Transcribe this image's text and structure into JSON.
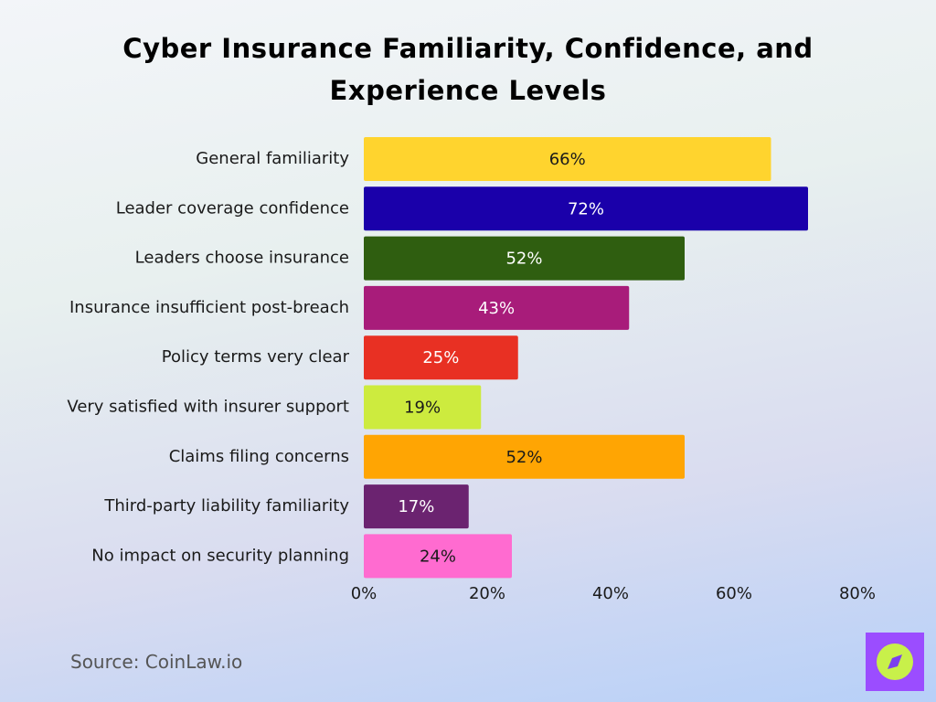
{
  "chart_data": {
    "type": "bar",
    "orientation": "horizontal",
    "title": "Cyber Insurance Familiarity, Confidence, and Experience Levels",
    "categories": [
      "General familiarity",
      "Leader coverage confidence",
      "Leaders choose insurance",
      "Insurance insufficient post-breach",
      "Policy terms very clear",
      "Very satisfied with insurer support",
      "Claims filing concerns",
      "Third-party liability familiarity",
      "No impact on security planning"
    ],
    "values": [
      66,
      72,
      52,
      43,
      25,
      19,
      52,
      17,
      24
    ],
    "value_labels": [
      "66%",
      "72%",
      "52%",
      "43%",
      "25%",
      "19%",
      "52%",
      "17%",
      "24%"
    ],
    "colors": [
      "#ffd42e",
      "#1a00aa",
      "#2f5e10",
      "#a81c7a",
      "#e83023",
      "#cdeb3e",
      "#ffa503",
      "#6b2370",
      "#ff6bd0"
    ],
    "xlim": [
      0,
      80
    ],
    "xticks": [
      {
        "value": 0,
        "label": "0%"
      },
      {
        "value": 20,
        "label": "20%"
      },
      {
        "value": 40,
        "label": "40%"
      },
      {
        "value": 60,
        "label": "60%"
      },
      {
        "value": 80,
        "label": "80%"
      }
    ],
    "grid": false,
    "source": "Source: CoinLaw.io"
  }
}
